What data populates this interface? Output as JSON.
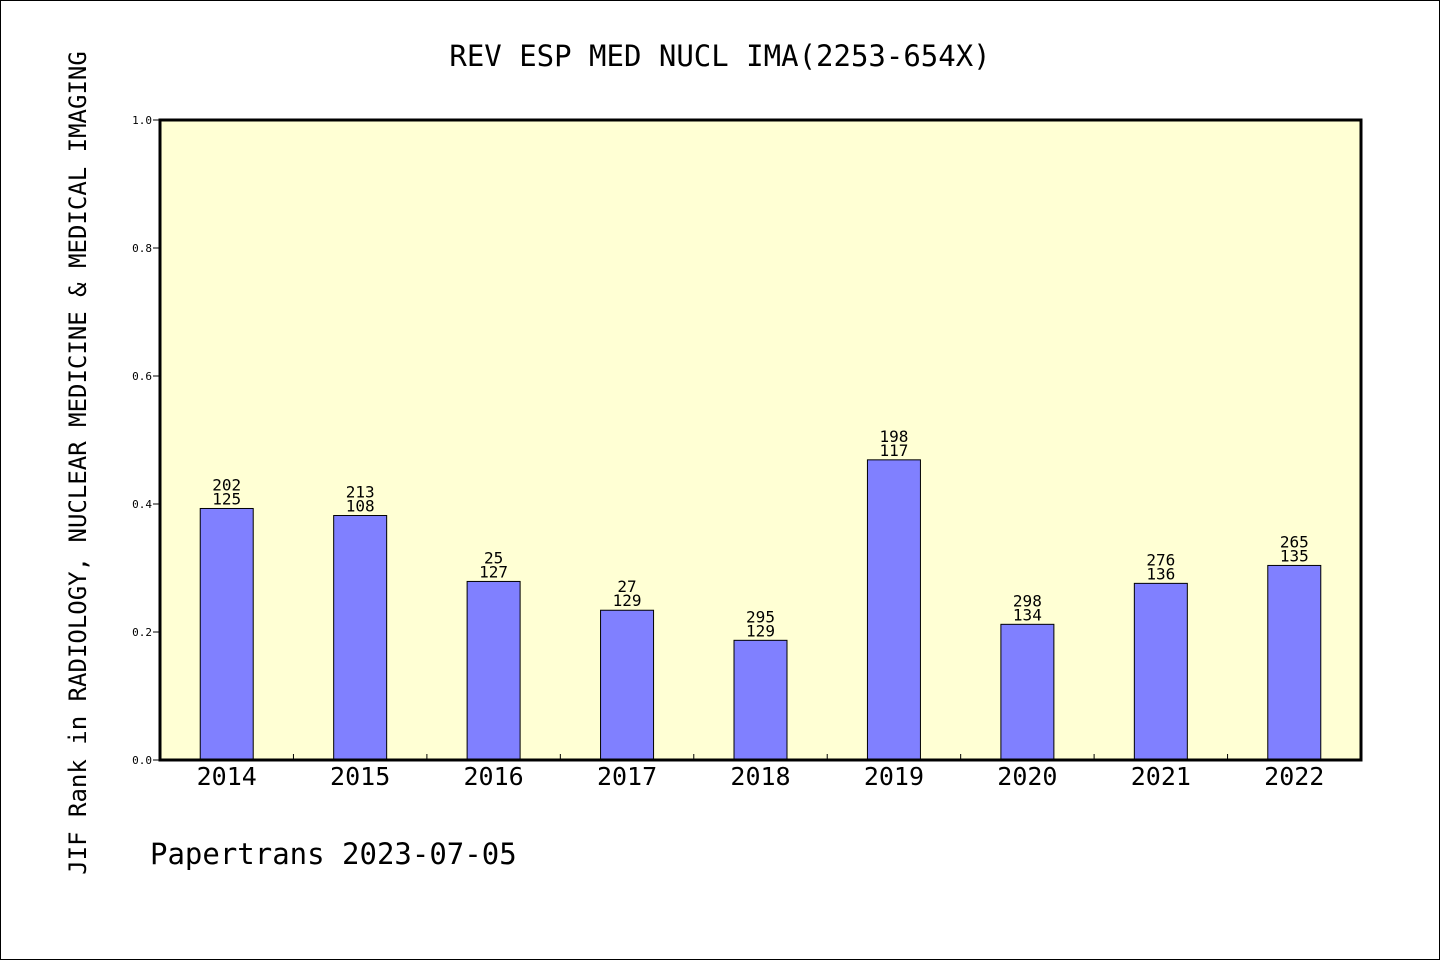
{
  "chart_data": {
    "type": "bar",
    "title": "REV ESP MED NUCL IMA(2253-654X)",
    "ylabel": "JIF Rank in RADIOLOGY, NUCLEAR MEDICINE & MEDICAL IMAGING",
    "xlabel": "",
    "ylim": [
      0,
      1.0
    ],
    "yticks": [
      "0.0",
      "0.2",
      "0.4",
      "0.6",
      "0.8",
      "1.0"
    ],
    "categories": [
      "2014",
      "2015",
      "2016",
      "2017",
      "2018",
      "2019",
      "2020",
      "2021",
      "2022"
    ],
    "values": [
      0.393,
      0.382,
      0.279,
      0.234,
      0.187,
      0.469,
      0.212,
      0.276,
      0.304
    ],
    "labels_top": [
      "202",
      "213",
      "25",
      "27",
      "295",
      "198",
      "298",
      "276",
      "265"
    ],
    "labels_bottom": [
      "125",
      "108",
      "127",
      "129",
      "129",
      "117",
      "134",
      "136",
      "135"
    ],
    "grid": false,
    "colors": {
      "plot_background": "#ffffd4",
      "bar_fill": "#8080ff",
      "bar_stroke": "#000000"
    }
  },
  "footer": "Papertrans 2023-07-05"
}
